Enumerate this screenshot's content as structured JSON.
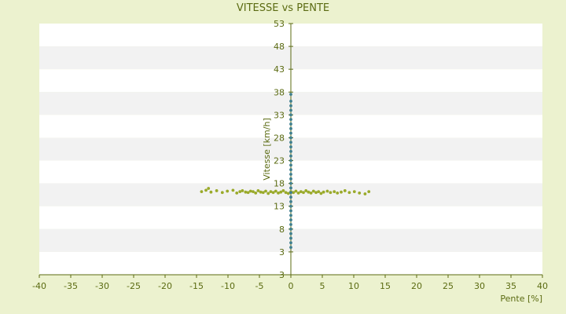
{
  "chart_data": {
    "type": "scatter",
    "title": "VITESSE vs PENTE",
    "xlabel": "Pente [%]",
    "ylabel": "Vitesse [km/h]",
    "xlim": [
      -40,
      40
    ],
    "ylim": [
      3,
      53
    ],
    "x_ticks": [
      "-40",
      "-35",
      "-30",
      "-25",
      "-20",
      "-15",
      "-10",
      "-5",
      "0",
      "5",
      "10",
      "15",
      "20",
      "25",
      "30",
      "35",
      "40"
    ],
    "y_ticks": [
      "3",
      "3",
      "8",
      "13",
      "18",
      "23",
      "28",
      "33",
      "38",
      "43",
      "48",
      "53"
    ],
    "grid": "horizontal bands",
    "colors": {
      "background": "#ecf2cf",
      "plot_band_light": "#ffffff",
      "plot_band_dark": "#f2f2f2",
      "axis": "#5b6b12",
      "points_horizontal": "#9aaa2a",
      "points_vertical": "#3f7f8f"
    },
    "series": [
      {
        "color": "#9aaa2a",
        "points": [
          [
            -14.2,
            16.2
          ],
          [
            -13.5,
            16.5
          ],
          [
            -13.1,
            16.9
          ],
          [
            -12.7,
            16.1
          ],
          [
            -11.8,
            16.4
          ],
          [
            -10.9,
            16.0
          ],
          [
            -10.1,
            16.3
          ],
          [
            -9.2,
            16.5
          ],
          [
            -8.6,
            15.9
          ],
          [
            -8.1,
            16.2
          ],
          [
            -7.7,
            16.4
          ],
          [
            -7.2,
            16.1
          ],
          [
            -6.8,
            16.0
          ],
          [
            -6.4,
            16.3
          ],
          [
            -6.0,
            16.2
          ],
          [
            -5.6,
            15.9
          ],
          [
            -5.2,
            16.4
          ],
          [
            -4.8,
            16.1
          ],
          [
            -4.4,
            16.0
          ],
          [
            -4.0,
            16.3
          ],
          [
            -3.6,
            15.8
          ],
          [
            -3.2,
            16.2
          ],
          [
            -2.8,
            16.0
          ],
          [
            -2.4,
            16.3
          ],
          [
            -2.0,
            15.9
          ],
          [
            -1.6,
            16.1
          ],
          [
            -1.2,
            16.4
          ],
          [
            -0.8,
            16.0
          ],
          [
            -0.4,
            15.8
          ],
          [
            0.0,
            16.2
          ],
          [
            0.4,
            16.0
          ],
          [
            0.8,
            16.3
          ],
          [
            1.2,
            15.9
          ],
          [
            1.6,
            16.2
          ],
          [
            2.0,
            16.0
          ],
          [
            2.4,
            16.4
          ],
          [
            2.8,
            16.1
          ],
          [
            3.2,
            15.9
          ],
          [
            3.6,
            16.3
          ],
          [
            4.0,
            16.0
          ],
          [
            4.4,
            16.2
          ],
          [
            4.8,
            15.8
          ],
          [
            5.2,
            16.1
          ],
          [
            5.8,
            16.3
          ],
          [
            6.3,
            16.0
          ],
          [
            6.9,
            16.2
          ],
          [
            7.4,
            15.9
          ],
          [
            8.0,
            16.1
          ],
          [
            8.6,
            16.4
          ],
          [
            9.3,
            16.0
          ],
          [
            10.1,
            16.2
          ],
          [
            10.9,
            15.9
          ],
          [
            11.8,
            15.7
          ],
          [
            12.4,
            16.2
          ]
        ]
      },
      {
        "color": "#3f7f8f",
        "points": [
          [
            0.0,
            4.0
          ],
          [
            0.0,
            5.0
          ],
          [
            0.0,
            6.0
          ],
          [
            0.0,
            7.0
          ],
          [
            0.0,
            8.0
          ],
          [
            0.0,
            9.0
          ],
          [
            0.0,
            10.0
          ],
          [
            0.0,
            11.0
          ],
          [
            0.0,
            12.0
          ],
          [
            0.0,
            13.0
          ],
          [
            0.0,
            14.0
          ],
          [
            0.0,
            15.0
          ],
          [
            0.0,
            16.0
          ],
          [
            0.0,
            17.0
          ],
          [
            0.0,
            18.0
          ],
          [
            0.0,
            19.0
          ],
          [
            0.0,
            20.0
          ],
          [
            0.0,
            21.0
          ],
          [
            0.0,
            22.0
          ],
          [
            0.0,
            23.0
          ],
          [
            0.0,
            24.0
          ],
          [
            0.0,
            25.0
          ],
          [
            0.0,
            26.0
          ],
          [
            0.0,
            27.0
          ],
          [
            0.0,
            28.0
          ],
          [
            0.0,
            29.0
          ],
          [
            0.0,
            30.0
          ],
          [
            0.0,
            31.0
          ],
          [
            0.0,
            32.0
          ],
          [
            0.0,
            33.0
          ],
          [
            0.0,
            34.0
          ],
          [
            0.0,
            35.0
          ],
          [
            0.0,
            36.0
          ],
          [
            0.0,
            37.5
          ]
        ]
      }
    ]
  }
}
